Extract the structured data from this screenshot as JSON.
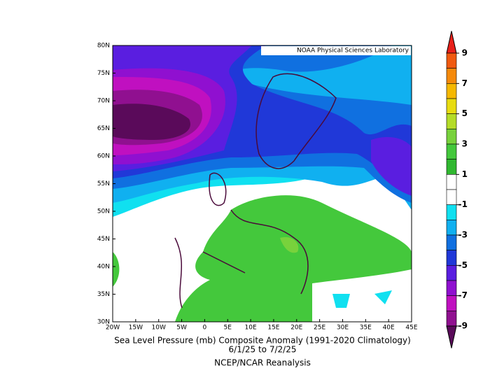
{
  "header": {
    "credit": "NOAA Physical Sciences Laboratory"
  },
  "map": {
    "lat_labels": [
      "80N",
      "75N",
      "70N",
      "65N",
      "60N",
      "55N",
      "50N",
      "45N",
      "40N",
      "35N",
      "30N"
    ],
    "lon_labels": [
      "20W",
      "15W",
      "10W",
      "5W",
      "0",
      "5E",
      "10E",
      "15E",
      "20E",
      "25E",
      "30E",
      "35E",
      "40E",
      "45E"
    ]
  },
  "caption": {
    "title": "Sea Level Pressure (mb) Composite Anomaly (1991-2020 Climatology)",
    "dates": "6/1/25   to 7/2/25",
    "source": "NCEP/NCAR Reanalysis"
  },
  "colorbar": {
    "ticks": [
      9,
      7,
      5,
      3,
      1,
      -1,
      -3,
      -5,
      -7,
      -9
    ],
    "colors": [
      "#e8201a",
      "#f05a10",
      "#f58a0a",
      "#f5b800",
      "#e8dc10",
      "#b4dc28",
      "#78d23c",
      "#44c83c",
      "#30b830",
      "#ffffff",
      "#ffffff",
      "#10e0f0",
      "#10b0f0",
      "#1070e0",
      "#2038d8",
      "#5a1ee0",
      "#9010d0",
      "#c010c0",
      "#901090",
      "#5a0a5a"
    ]
  }
}
